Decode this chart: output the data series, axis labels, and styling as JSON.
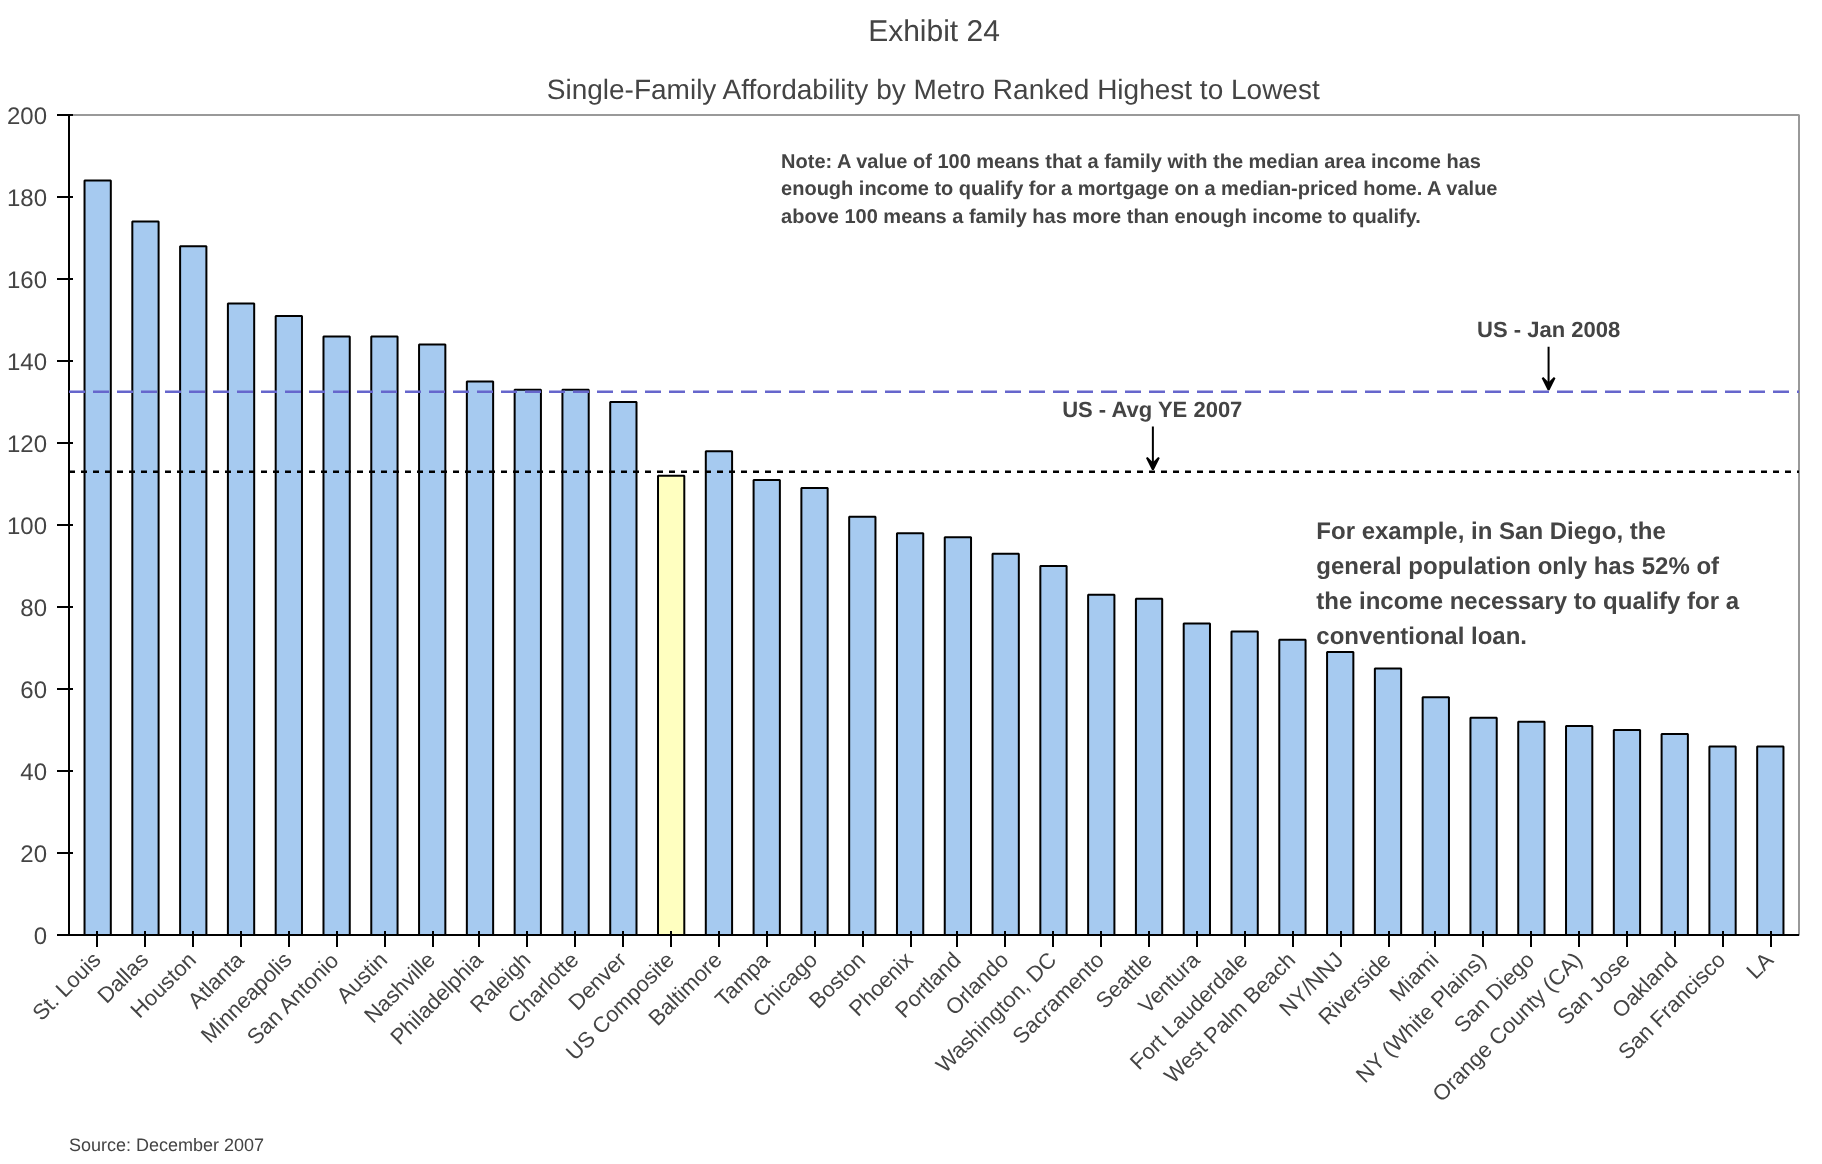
{
  "chart_data": {
    "type": "bar",
    "title": "Exhibit 24",
    "subtitle": "Single-Family Affordability by Metro Ranked Highest to Lowest",
    "categories": [
      "St. Louis",
      "Dallas",
      "Houston",
      "Atlanta",
      "Minneapolis",
      "San Antonio",
      "Austin",
      "Nashville",
      "Philadelphia",
      "Raleigh",
      "Charlotte",
      "Denver",
      "US Composite",
      "Baltimore",
      "Tampa",
      "Chicago",
      "Boston",
      "Phoenix",
      "Portland",
      "Orlando",
      "Washington, DC",
      "Sacramento",
      "Seattle",
      "Ventura",
      "Fort Lauderdale",
      "West Palm Beach",
      "NY/NNJ",
      "Riverside",
      "Miami",
      "NY (White Plains)",
      "San Diego",
      "Orange County (CA)",
      "San Jose",
      "Oakland",
      "San Francisco",
      "LA"
    ],
    "values": [
      184,
      174,
      168,
      154,
      151,
      146,
      146,
      144,
      135,
      133,
      133,
      130,
      112,
      118,
      111,
      109,
      102,
      98,
      97,
      93,
      90,
      83,
      82,
      76,
      74,
      72,
      69,
      65,
      58,
      53,
      52,
      51,
      50,
      49,
      46,
      46
    ],
    "colors": [
      "#a6caf0",
      "#a6caf0",
      "#a6caf0",
      "#a6caf0",
      "#a6caf0",
      "#a6caf0",
      "#a6caf0",
      "#a6caf0",
      "#a6caf0",
      "#a6caf0",
      "#a6caf0",
      "#a6caf0",
      "#ffffc0",
      "#a6caf0",
      "#a6caf0",
      "#a6caf0",
      "#a6caf0",
      "#a6caf0",
      "#a6caf0",
      "#a6caf0",
      "#a6caf0",
      "#a6caf0",
      "#a6caf0",
      "#a6caf0",
      "#a6caf0",
      "#a6caf0",
      "#a6caf0",
      "#a6caf0",
      "#a6caf0",
      "#a6caf0",
      "#a6caf0",
      "#a6caf0",
      "#a6caf0",
      "#a6caf0",
      "#a6caf0",
      "#a6caf0"
    ],
    "ylim": [
      0,
      200
    ],
    "yticks": [
      0,
      20,
      40,
      60,
      80,
      100,
      120,
      140,
      160,
      180,
      200
    ],
    "grid": false,
    "ref_lines": [
      {
        "axis": "y",
        "value": 132.5,
        "label": "US - Jan 2008",
        "color": "#6666cc",
        "line_style": "dashed"
      },
      {
        "axis": "y",
        "value": 113,
        "label": "US - Avg YE 2007",
        "color": "#000000",
        "line_style": "dotted"
      }
    ],
    "annotations": [
      "Note:  A value of 100 means that a family with the median area income has\nenough income to qualify for a mortgage on a median-priced home.  A value\nabove 100 means a family has more than enough income to qualify.",
      "For example, in San Diego, the\ngeneral population only has 52% of\nthe income necessary to qualify for a\nconventional loan.",
      "Source:  December 2007"
    ]
  }
}
